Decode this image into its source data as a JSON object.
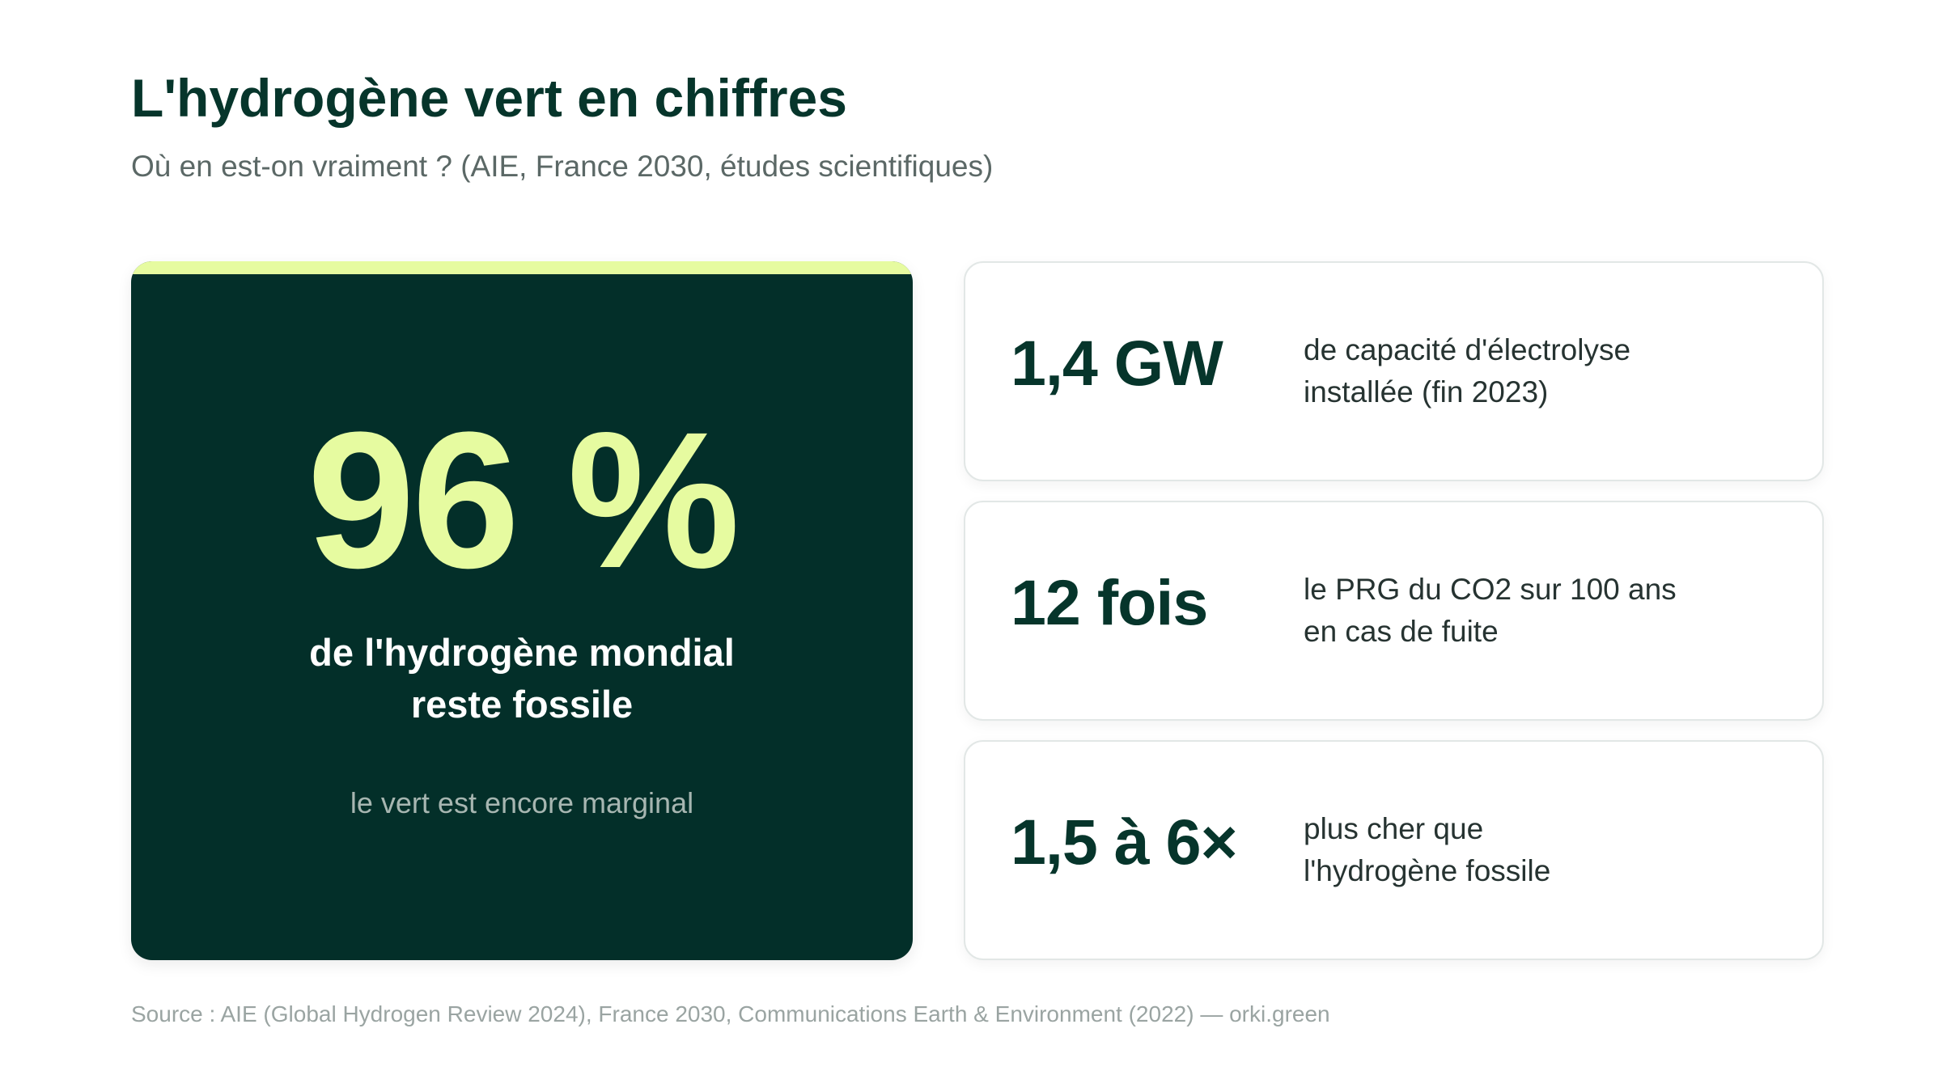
{
  "title": "L'hydrogène vert en chiffres",
  "subtitle": "Où en est-on vraiment ? (AIE, France 2030, études scientifiques)",
  "hero": {
    "value": "96 %",
    "label_lines": [
      "de l'hydrogène mondial",
      "reste fossile"
    ],
    "note": "le vert est encore marginal"
  },
  "stats": [
    {
      "value": "1,4 GW",
      "desc_lines": [
        "de capacité d'électrolyse",
        "installée (fin 2023)"
      ]
    },
    {
      "value": "12 fois",
      "desc_lines": [
        "le PRG du CO2 sur 100 ans",
        "en cas de fuite"
      ]
    },
    {
      "value": "1,5 à 6×",
      "desc_lines": [
        "plus cher que",
        "l'hydrogène fossile"
      ]
    }
  ],
  "source": "Source : AIE (Global Hydrogen Review 2024), France 2030, Communications Earth & Environment (2022) — orki.green",
  "colors": {
    "dark_green": "#032f29",
    "accent_lime": "#e6fba0",
    "title_green": "#06352b",
    "muted_text": "#5b6866",
    "card_border": "#e2e7e6"
  }
}
